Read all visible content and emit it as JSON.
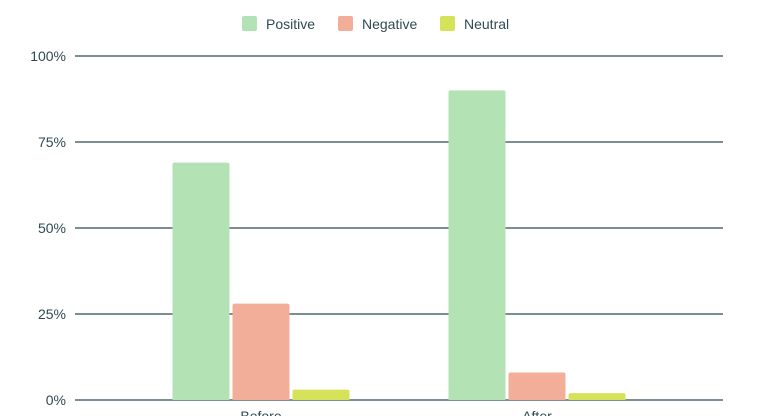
{
  "chart_data": {
    "type": "bar",
    "title": "",
    "xlabel": "",
    "ylabel": "",
    "categories": [
      "Before",
      "After"
    ],
    "series": [
      {
        "name": "Positive",
        "values": [
          69,
          90
        ],
        "color": "#b3e3b5"
      },
      {
        "name": "Negative",
        "values": [
          28,
          8
        ],
        "color": "#f2ae99"
      },
      {
        "name": "Neutral",
        "values": [
          3,
          2
        ],
        "color": "#d6e35a"
      }
    ],
    "ylim": [
      0,
      100
    ],
    "yticks": [
      0,
      25,
      50,
      75,
      100
    ],
    "ytick_labels": [
      "0%",
      "25%",
      "50%",
      "75%",
      "100%"
    ],
    "grid": true,
    "legend_position": "top-center"
  }
}
